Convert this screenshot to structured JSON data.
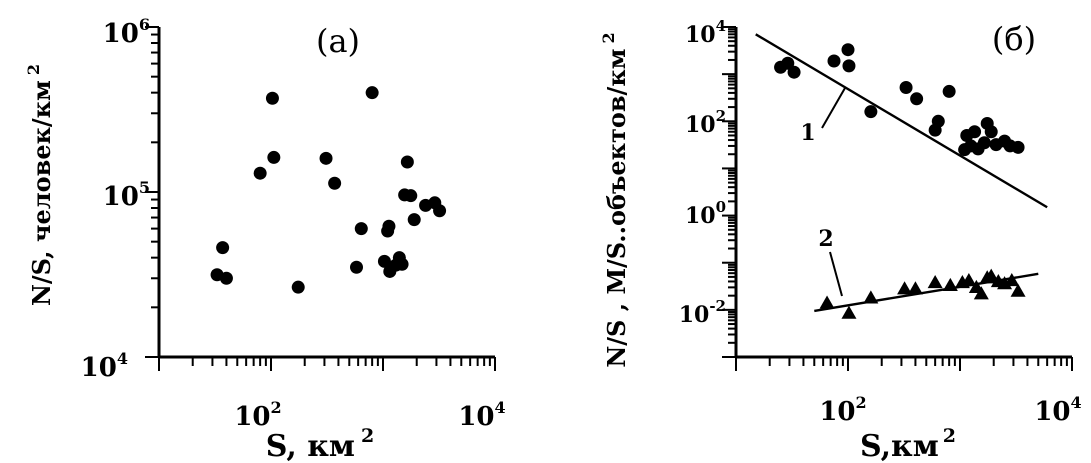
{
  "chart_data": [
    {
      "type": "scatter",
      "panel_label": "(а)",
      "xlabel": "S, км",
      "xlabel_sup": "2",
      "ylabel": "N/S, человек/км",
      "ylabel_sup": "2",
      "xlog": true,
      "ylog": true,
      "xlim": [
        10,
        10000
      ],
      "ylim": [
        10000,
        1000000
      ],
      "x_tick_labels": [
        {
          "value": 100,
          "base": "10",
          "exp": "2"
        },
        {
          "value": 10000,
          "base": "10",
          "exp": "4"
        }
      ],
      "y_tick_labels": [
        {
          "value": 10000,
          "base": "10",
          "exp": "4"
        },
        {
          "value": 100000,
          "base": "10",
          "exp": "5"
        },
        {
          "value": 1000000,
          "base": "10",
          "exp": "6"
        }
      ],
      "series": [
        {
          "marker": "circle",
          "points": [
            [
              33,
              31500
            ],
            [
              37,
              46000
            ],
            [
              40,
              30000
            ],
            [
              80,
              130000
            ],
            [
              103,
              370000
            ],
            [
              106,
              162000
            ],
            [
              175,
              26500
            ],
            [
              310,
              160000
            ],
            [
              370,
              113000
            ],
            [
              580,
              35000
            ],
            [
              640,
              60000
            ],
            [
              800,
              400000
            ],
            [
              1030,
              38000
            ],
            [
              1100,
              58000
            ],
            [
              1130,
              62000
            ],
            [
              1150,
              33000
            ],
            [
              1300,
              36000
            ],
            [
              1400,
              40000
            ],
            [
              1480,
              36500
            ],
            [
              1560,
              96000
            ],
            [
              1650,
              152000
            ],
            [
              1770,
              95000
            ],
            [
              1900,
              68000
            ],
            [
              2400,
              83000
            ],
            [
              2900,
              86000
            ],
            [
              3200,
              77000
            ]
          ]
        }
      ]
    },
    {
      "type": "scatter",
      "panel_label": "(б)",
      "xlabel": "S,км",
      "xlabel_sup": "2",
      "ylabel": "N/S , M/S..объектов/км",
      "ylabel_sup": "2",
      "xlog": true,
      "ylog": true,
      "xlim": [
        10,
        10000
      ],
      "ylim": [
        0.001,
        10000
      ],
      "x_tick_labels": [
        {
          "value": 100,
          "base": "10",
          "exp": "2"
        },
        {
          "value": 10000,
          "base": "10",
          "exp": "4"
        }
      ],
      "y_tick_labels": [
        {
          "value": 0.01,
          "base": "10",
          "exp": "-2"
        },
        {
          "value": 1,
          "base": "10",
          "exp": "0"
        },
        {
          "value": 100,
          "base": "10",
          "exp": "2"
        },
        {
          "value": 10000,
          "base": "10",
          "exp": "4"
        }
      ],
      "annotations": [
        {
          "text": "1",
          "series": 0
        },
        {
          "text": "2",
          "series": 1
        }
      ],
      "series": [
        {
          "marker": "circle",
          "points": [
            [
              25,
              1400
            ],
            [
              29,
              1700
            ],
            [
              33,
              1100
            ],
            [
              75,
              1900
            ],
            [
              100,
              3300
            ],
            [
              102,
              1500
            ],
            [
              160,
              160
            ],
            [
              330,
              520
            ],
            [
              410,
              300
            ],
            [
              600,
              65
            ],
            [
              640,
              100
            ],
            [
              800,
              430
            ],
            [
              1100,
              25
            ],
            [
              1150,
              50
            ],
            [
              1250,
              30
            ],
            [
              1350,
              60
            ],
            [
              1450,
              26
            ],
            [
              1650,
              35
            ],
            [
              1750,
              90
            ],
            [
              1900,
              60
            ],
            [
              2100,
              32
            ],
            [
              2500,
              38
            ],
            [
              2800,
              30
            ],
            [
              3300,
              28
            ]
          ],
          "fit": [
            [
              15,
              7000
            ],
            [
              6000,
              1.5
            ]
          ]
        },
        {
          "marker": "triangle",
          "points": [
            [
              65,
              0.014
            ],
            [
              102,
              0.0085
            ],
            [
              160,
              0.018
            ],
            [
              320,
              0.028
            ],
            [
              400,
              0.028
            ],
            [
              600,
              0.038
            ],
            [
              820,
              0.033
            ],
            [
              1050,
              0.038
            ],
            [
              1200,
              0.042
            ],
            [
              1400,
              0.03
            ],
            [
              1550,
              0.022
            ],
            [
              1750,
              0.048
            ],
            [
              1900,
              0.052
            ],
            [
              2200,
              0.04
            ],
            [
              2500,
              0.036
            ],
            [
              2900,
              0.042
            ],
            [
              3300,
              0.025
            ]
          ],
          "fit": [
            [
              50,
              0.0095
            ],
            [
              5000,
              0.058
            ]
          ]
        }
      ]
    }
  ]
}
